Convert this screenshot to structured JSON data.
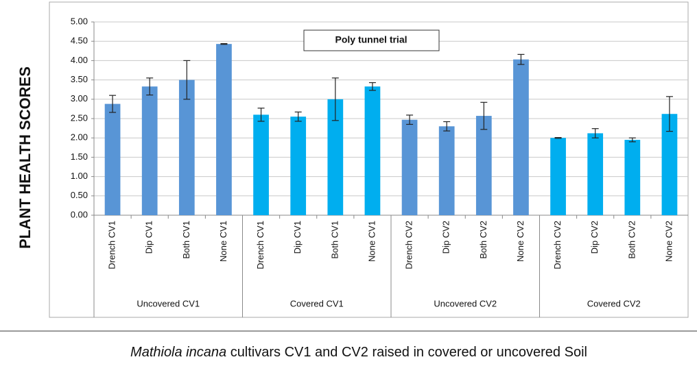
{
  "chart_data": {
    "type": "bar",
    "annotation": "Poly tunnel trial",
    "ylabel": "PLANT HEALTH SCORES",
    "caption_italic": "Mathiola incana",
    "caption": "cultivars CV1 and CV2 raised in covered or uncovered Soil",
    "ylim": [
      0,
      5
    ],
    "yticks": [
      {
        "value": 0,
        "label": "0.00"
      },
      {
        "value": 0.5,
        "label": "0.50"
      },
      {
        "value": 1,
        "label": "1.00"
      },
      {
        "value": 1.5,
        "label": "1.50"
      },
      {
        "value": 2,
        "label": "2.00"
      },
      {
        "value": 2.5,
        "label": "2.50"
      },
      {
        "value": 3,
        "label": "3.00"
      },
      {
        "value": 3.5,
        "label": "3.50"
      },
      {
        "value": 4,
        "label": "4.00"
      },
      {
        "value": 4.5,
        "label": "4.50"
      },
      {
        "value": 5,
        "label": "5.00"
      }
    ],
    "grid": true,
    "groups": [
      {
        "name": "Uncovered CV1",
        "color": "#5895d6",
        "categories": [
          "Drench CV1",
          "Dip CV1",
          "Both CV1",
          "None CV1"
        ],
        "values": [
          2.88,
          3.33,
          3.5,
          4.43
        ],
        "errors": [
          0.22,
          0.22,
          0.5,
          0.01
        ]
      },
      {
        "name": "Covered CV1",
        "color": "#00aeef",
        "categories": [
          "Drench CV1",
          "Dip CV1",
          "Both CV1",
          "None CV1"
        ],
        "values": [
          2.6,
          2.55,
          3.0,
          3.33
        ],
        "errors": [
          0.17,
          0.12,
          0.55,
          0.1
        ]
      },
      {
        "name": "Uncovered CV2",
        "color": "#5895d6",
        "categories": [
          "Drench CV2",
          "Dip CV2",
          "Both CV2",
          "None CV2"
        ],
        "values": [
          2.47,
          2.3,
          2.57,
          4.03
        ],
        "errors": [
          0.12,
          0.12,
          0.35,
          0.13
        ]
      },
      {
        "name": "Covered CV2",
        "color": "#00aeef",
        "categories": [
          "Drench CV2",
          "Dip CV2",
          "Both CV2",
          "None CV2"
        ],
        "values": [
          2.0,
          2.12,
          1.95,
          2.62
        ],
        "errors": [
          0.01,
          0.12,
          0.05,
          0.45
        ]
      }
    ]
  }
}
